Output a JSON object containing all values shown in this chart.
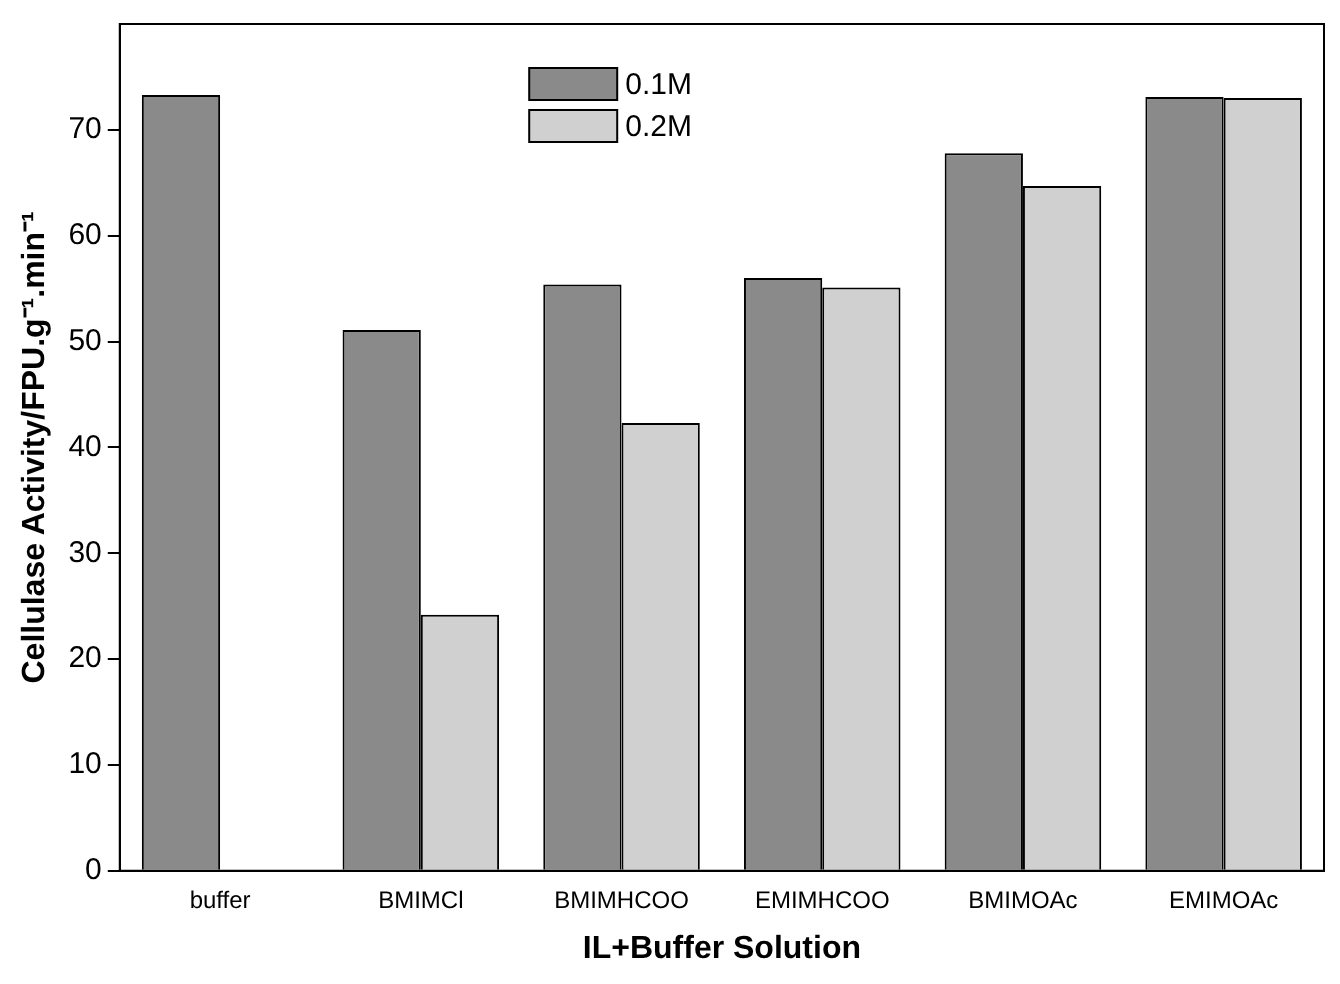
{
  "chart_data": {
    "type": "bar",
    "xlabel": "IL+Buffer Solution",
    "ylabel": "Cellulase Activity/FPU.g⁻¹.min⁻¹",
    "categories": [
      "buffer",
      "BMIMCl",
      "BMIMHCOO",
      "EMIMHCOO",
      "BMIMOAc",
      "EMIMOAc"
    ],
    "series": [
      {
        "name": "0.1M",
        "color": "#8a8a8a",
        "values": [
          73.3,
          51.1,
          55.4,
          56.0,
          67.8,
          73.1
        ]
      },
      {
        "name": "0.2M",
        "color": "#d0d0d0",
        "values": [
          null,
          24.2,
          42.3,
          55.1,
          64.7,
          73.0
        ]
      }
    ],
    "ylim": [
      0,
      80
    ],
    "yticks": [
      0,
      10,
      20,
      30,
      40,
      50,
      60,
      70
    ],
    "grid": false,
    "legend": "top center"
  }
}
